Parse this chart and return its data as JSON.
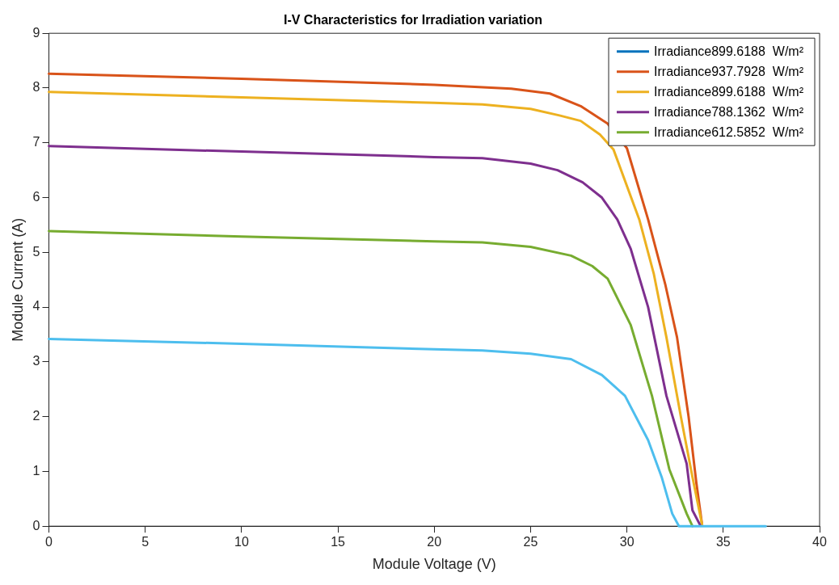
{
  "chart_data": {
    "type": "line",
    "title": "I-V Characteristics for Irradiation variation",
    "xlabel": "Module Voltage (V)",
    "ylabel": "Module Current (A)",
    "xlim": [
      0,
      40
    ],
    "xticks": [
      0,
      5,
      10,
      15,
      20,
      25,
      30,
      35,
      40
    ],
    "ylim": [
      0,
      9
    ],
    "yticks": [
      0,
      1,
      2,
      3,
      4,
      5,
      6,
      7,
      8,
      9
    ],
    "grid": false,
    "legend": "top right",
    "marker": "none",
    "line_style": "solid",
    "series": [
      {
        "name": "Irradiance899.6188  W/m²",
        "color": "#0072bd"
      },
      {
        "name": "Irradiance937.7928  W/m²",
        "color": "#d95319",
        "x": [
          0,
          10,
          20,
          24,
          26,
          27.6,
          29,
          30,
          31.1,
          32,
          32.6,
          33.2,
          33.6,
          33.9
        ],
        "values": [
          8.26,
          8.17,
          8.06,
          7.99,
          7.9,
          7.67,
          7.35,
          6.9,
          5.6,
          4.4,
          3.45,
          2.0,
          0.8,
          0.03
        ]
      },
      {
        "name": "Irradiance899.6188  W/m²",
        "color": "#edb120",
        "x": [
          0,
          10,
          20,
          22.5,
          25,
          26.5,
          27.6,
          28.6,
          29.3,
          30.65,
          31.4,
          32.05,
          32.8,
          33.4,
          33.9
        ],
        "values": [
          7.93,
          7.83,
          7.73,
          7.7,
          7.62,
          7.5,
          7.4,
          7.15,
          6.88,
          5.59,
          4.6,
          3.45,
          2.0,
          0.9,
          0.03
        ]
      },
      {
        "name": "Irradiance788.1362  W/m²",
        "color": "#7e2f8e",
        "x": [
          0,
          10,
          20,
          22.5,
          25,
          26.4,
          27.7,
          28.7,
          29.5,
          30.2,
          31.1,
          32.05,
          33.1,
          33.4,
          33.8
        ],
        "values": [
          6.94,
          6.84,
          6.74,
          6.72,
          6.62,
          6.5,
          6.28,
          6.0,
          5.6,
          5.06,
          4.0,
          2.38,
          1.14,
          0.29,
          0.02
        ]
      },
      {
        "name": "Irradiance612.5852  W/m²",
        "color": "#77ac30",
        "x": [
          0,
          10,
          20,
          22.5,
          25,
          27.1,
          28.2,
          29,
          30.2,
          31.3,
          32.2,
          33.1,
          33.4
        ],
        "values": [
          5.39,
          5.29,
          5.2,
          5.18,
          5.1,
          4.94,
          4.75,
          4.52,
          3.67,
          2.38,
          1.04,
          0.23,
          0
        ]
      },
      {
        "color": "#4dbeee",
        "x": [
          0,
          10,
          20,
          22.5,
          25,
          27.1,
          28.7,
          29.9,
          31.1,
          31.8,
          32.35,
          32.7,
          37.2
        ],
        "values": [
          3.42,
          3.33,
          3.23,
          3.21,
          3.15,
          3.05,
          2.76,
          2.38,
          1.57,
          0.9,
          0.23,
          0,
          0
        ]
      }
    ]
  }
}
